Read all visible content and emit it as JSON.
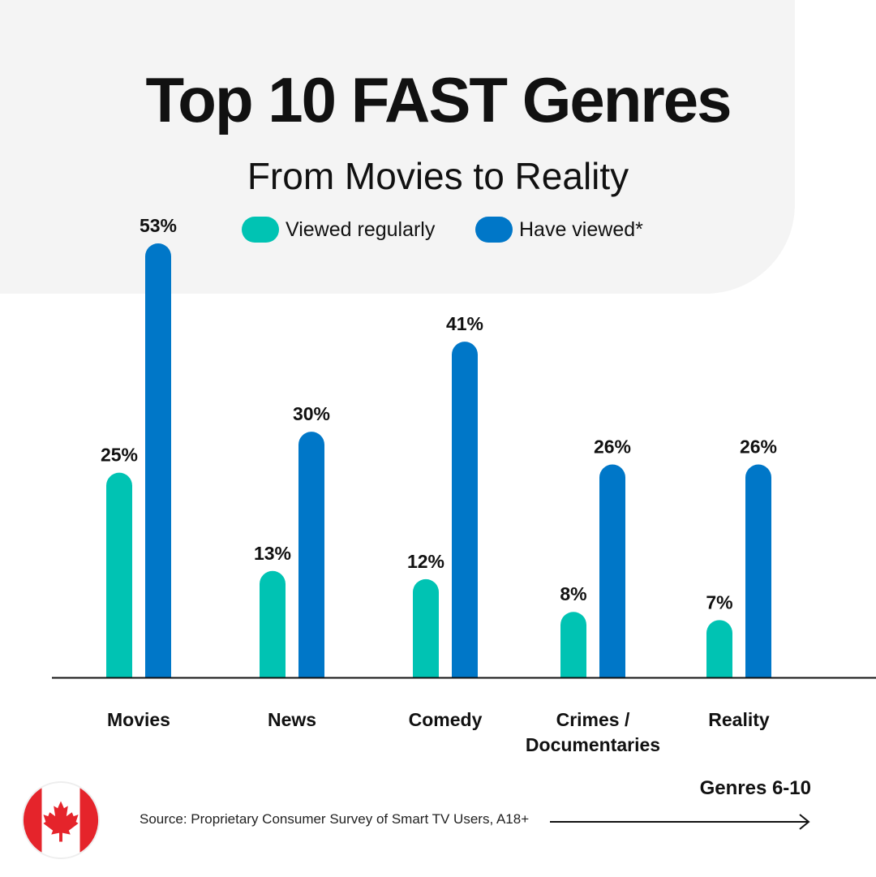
{
  "header": {
    "title": "Top 10 FAST Genres",
    "subtitle": "From Movies to Reality"
  },
  "legend": [
    {
      "label": "Viewed regularly",
      "color": "#00c3b3"
    },
    {
      "label": "Have viewed*",
      "color": "#0077c8"
    }
  ],
  "chart_data": {
    "type": "bar",
    "title": "Top 10 FAST Genres",
    "subtitle": "From Movies to Reality",
    "categories": [
      "Movies",
      "News",
      "Comedy",
      "Crimes / Documentaries",
      "Reality"
    ],
    "category_lines": [
      [
        "Movies"
      ],
      [
        "News"
      ],
      [
        "Comedy"
      ],
      [
        "Crimes /",
        "Documentaries"
      ],
      [
        "Reality"
      ]
    ],
    "series": [
      {
        "name": "Viewed regularly",
        "color": "#00c3b3",
        "values": [
          25,
          13,
          12,
          8,
          7
        ],
        "labels": [
          "25%",
          "13%",
          "12%",
          "8%",
          "7%"
        ]
      },
      {
        "name": "Have viewed*",
        "color": "#0077c8",
        "values": [
          53,
          30,
          41,
          26,
          26
        ],
        "labels": [
          "53%",
          "30%",
          "41%",
          "26%",
          "26%"
        ]
      }
    ],
    "ylim": [
      0,
      53
    ],
    "grid": false,
    "legend_position": "top"
  },
  "footer": {
    "source": "Source: Proprietary Consumer Survey of Smart TV Users, A18+",
    "next_label": "Genres 6-10",
    "flag_icon": "canada-flag-icon"
  }
}
